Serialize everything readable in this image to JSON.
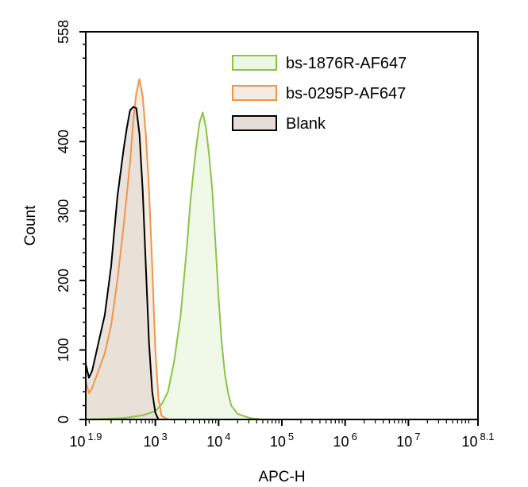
{
  "chart_data": {
    "type": "area",
    "xlabel": "APC-H",
    "ylabel": "Count",
    "x_scale": "log10",
    "xlim": [
      1.9,
      8.1
    ],
    "ylim": [
      0,
      558
    ],
    "x_ticks": [
      {
        "base": "10",
        "exp": "1.9",
        "value": 1.9
      },
      {
        "base": "10",
        "exp": "3",
        "value": 3
      },
      {
        "base": "10",
        "exp": "4",
        "value": 4
      },
      {
        "base": "10",
        "exp": "5",
        "value": 5
      },
      {
        "base": "10",
        "exp": "6",
        "value": 6
      },
      {
        "base": "10",
        "exp": "7",
        "value": 7
      },
      {
        "base": "10",
        "exp": "8.1",
        "value": 8.1
      }
    ],
    "y_ticks": [
      "0",
      "100",
      "200",
      "300",
      "400",
      "558"
    ],
    "legend_position": "top-right",
    "series": [
      {
        "name": "bs-1876R-AF647",
        "stroke": "#8bc34a",
        "fill": "#eef7e4",
        "points": [
          [
            1.9,
            0
          ],
          [
            2.2,
            1
          ],
          [
            2.5,
            2
          ],
          [
            2.8,
            6
          ],
          [
            3.0,
            12
          ],
          [
            3.1,
            22
          ],
          [
            3.2,
            40
          ],
          [
            3.3,
            85
          ],
          [
            3.4,
            150
          ],
          [
            3.5,
            250
          ],
          [
            3.55,
            310
          ],
          [
            3.6,
            355
          ],
          [
            3.65,
            395
          ],
          [
            3.7,
            428
          ],
          [
            3.75,
            442
          ],
          [
            3.8,
            420
          ],
          [
            3.85,
            380
          ],
          [
            3.9,
            330
          ],
          [
            3.95,
            255
          ],
          [
            4.0,
            175
          ],
          [
            4.05,
            110
          ],
          [
            4.1,
            65
          ],
          [
            4.15,
            38
          ],
          [
            4.2,
            20
          ],
          [
            4.3,
            8
          ],
          [
            4.5,
            2
          ],
          [
            4.7,
            0
          ]
        ]
      },
      {
        "name": "bs-0295P-AF647",
        "stroke": "#f0954a",
        "fill": "#f5ebe0",
        "points": [
          [
            1.9,
            55
          ],
          [
            1.95,
            38
          ],
          [
            2.0,
            45
          ],
          [
            2.1,
            70
          ],
          [
            2.2,
            95
          ],
          [
            2.3,
            135
          ],
          [
            2.4,
            200
          ],
          [
            2.5,
            280
          ],
          [
            2.6,
            370
          ],
          [
            2.65,
            430
          ],
          [
            2.7,
            470
          ],
          [
            2.75,
            490
          ],
          [
            2.8,
            465
          ],
          [
            2.85,
            410
          ],
          [
            2.9,
            330
          ],
          [
            2.95,
            220
          ],
          [
            3.0,
            100
          ],
          [
            3.05,
            30
          ],
          [
            3.1,
            5
          ],
          [
            3.2,
            0
          ]
        ]
      },
      {
        "name": "Blank",
        "stroke": "#000000",
        "fill": "#e6ddd6",
        "points": [
          [
            1.9,
            80
          ],
          [
            1.95,
            60
          ],
          [
            2.0,
            70
          ],
          [
            2.05,
            90
          ],
          [
            2.1,
            110
          ],
          [
            2.2,
            150
          ],
          [
            2.3,
            220
          ],
          [
            2.4,
            320
          ],
          [
            2.5,
            390
          ],
          [
            2.55,
            420
          ],
          [
            2.6,
            445
          ],
          [
            2.65,
            450
          ],
          [
            2.7,
            448
          ],
          [
            2.75,
            410
          ],
          [
            2.8,
            330
          ],
          [
            2.85,
            220
          ],
          [
            2.9,
            110
          ],
          [
            2.95,
            40
          ],
          [
            3.0,
            10
          ],
          [
            3.05,
            0
          ]
        ]
      }
    ]
  }
}
